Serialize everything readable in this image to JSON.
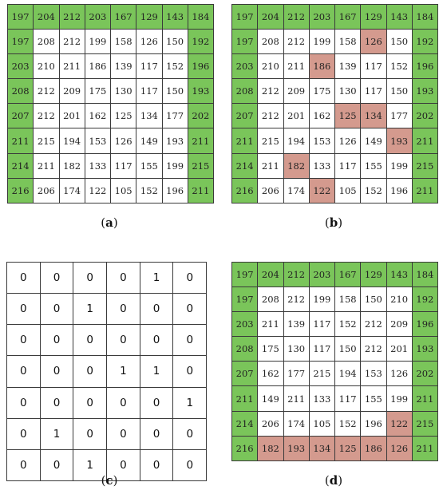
{
  "panels": [
    {
      "id": "a",
      "caption": "a",
      "cols": 8,
      "rows": [
        [
          "197",
          "204",
          "212",
          "203",
          "167",
          "129",
          "143",
          "184"
        ],
        [
          "197",
          "208",
          "212",
          "199",
          "158",
          "126",
          "150",
          "192"
        ],
        [
          "203",
          "210",
          "211",
          "186",
          "139",
          "117",
          "152",
          "196"
        ],
        [
          "208",
          "212",
          "209",
          "175",
          "130",
          "117",
          "150",
          "193"
        ],
        [
          "207",
          "212",
          "201",
          "162",
          "125",
          "134",
          "177",
          "202"
        ],
        [
          "211",
          "215",
          "194",
          "153",
          "126",
          "149",
          "193",
          "211"
        ],
        [
          "214",
          "211",
          "182",
          "133",
          "117",
          "155",
          "199",
          "215"
        ],
        [
          "216",
          "206",
          "174",
          "122",
          "105",
          "152",
          "196",
          "211"
        ]
      ],
      "highlights": []
    },
    {
      "id": "b",
      "caption": "b",
      "cols": 8,
      "rows": [
        [
          "197",
          "204",
          "212",
          "203",
          "167",
          "129",
          "143",
          "184"
        ],
        [
          "197",
          "208",
          "212",
          "199",
          "158",
          "126",
          "150",
          "192"
        ],
        [
          "203",
          "210",
          "211",
          "186",
          "139",
          "117",
          "152",
          "196"
        ],
        [
          "208",
          "212",
          "209",
          "175",
          "130",
          "117",
          "150",
          "193"
        ],
        [
          "207",
          "212",
          "201",
          "162",
          "125",
          "134",
          "177",
          "202"
        ],
        [
          "211",
          "215",
          "194",
          "153",
          "126",
          "149",
          "193",
          "211"
        ],
        [
          "214",
          "211",
          "182",
          "133",
          "117",
          "155",
          "199",
          "215"
        ],
        [
          "216",
          "206",
          "174",
          "122",
          "105",
          "152",
          "196",
          "211"
        ]
      ],
      "highlights": [
        [
          1,
          5
        ],
        [
          2,
          3
        ],
        [
          4,
          4
        ],
        [
          4,
          5
        ],
        [
          5,
          6
        ],
        [
          6,
          2
        ],
        [
          7,
          3
        ]
      ]
    },
    {
      "id": "c",
      "caption": "c",
      "cols": 6,
      "rows": [
        [
          "0",
          "0",
          "0",
          "0",
          "1",
          "0"
        ],
        [
          "0",
          "0",
          "1",
          "0",
          "0",
          "0"
        ],
        [
          "0",
          "0",
          "0",
          "0",
          "0",
          "0"
        ],
        [
          "0",
          "0",
          "0",
          "1",
          "1",
          "0"
        ],
        [
          "0",
          "0",
          "0",
          "0",
          "0",
          "1"
        ],
        [
          "0",
          "1",
          "0",
          "0",
          "0",
          "0"
        ],
        [
          "0",
          "0",
          "1",
          "0",
          "0",
          "0"
        ]
      ],
      "highlights": []
    },
    {
      "id": "d",
      "caption": "d",
      "cols": 8,
      "rows": [
        [
          "197",
          "204",
          "212",
          "203",
          "167",
          "129",
          "143",
          "184"
        ],
        [
          "197",
          "208",
          "212",
          "199",
          "158",
          "150",
          "210",
          "192"
        ],
        [
          "203",
          "211",
          "139",
          "117",
          "152",
          "212",
          "209",
          "196"
        ],
        [
          "208",
          "175",
          "130",
          "117",
          "150",
          "212",
          "201",
          "193"
        ],
        [
          "207",
          "162",
          "177",
          "215",
          "194",
          "153",
          "126",
          "202"
        ],
        [
          "211",
          "149",
          "211",
          "133",
          "117",
          "155",
          "199",
          "211"
        ],
        [
          "214",
          "206",
          "174",
          "105",
          "152",
          "196",
          "122",
          "215"
        ],
        [
          "216",
          "182",
          "193",
          "134",
          "125",
          "186",
          "126",
          "211"
        ]
      ],
      "highlights": [
        [
          6,
          6
        ],
        [
          7,
          1
        ],
        [
          7,
          2
        ],
        [
          7,
          3
        ],
        [
          7,
          4
        ],
        [
          7,
          5
        ],
        [
          7,
          6
        ]
      ]
    }
  ],
  "colors": {
    "border": "#7ac55a",
    "highlight": "#d49a8e",
    "cell": "#ffffff"
  }
}
